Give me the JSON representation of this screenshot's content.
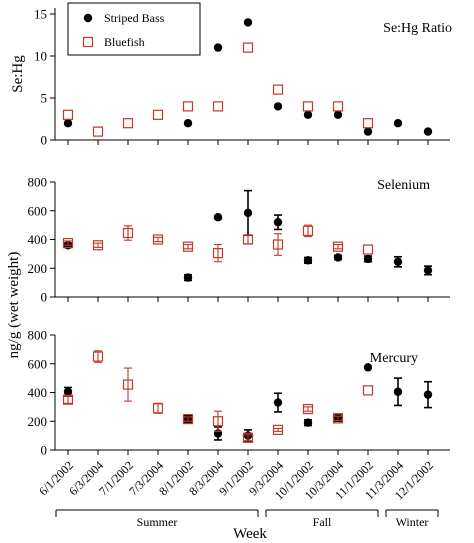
{
  "chart_data": {
    "type": "scatter",
    "ylabel_shared": "ng/g (wet weight)",
    "xlabel": "Week",
    "categories": [
      "6/1/2002",
      "6/3/2004",
      "7/1/2002",
      "7/3/2004",
      "8/1/2002",
      "8/3/2004",
      "9/1/2002",
      "9/3/2004",
      "10/1/2002",
      "10/3/2004",
      "11/1/2002",
      "11/3/2004",
      "12/1/2002"
    ],
    "seasons": [
      {
        "label": "Summer",
        "from": 0,
        "to": 6
      },
      {
        "label": "Fall",
        "from": 7,
        "to": 10
      },
      {
        "label": "Winter",
        "from": 11,
        "to": 12
      }
    ],
    "legend": [
      {
        "name": "Striped Bass",
        "marker": "filled-circle",
        "color": "#000000"
      },
      {
        "name": "Bluefish",
        "marker": "open-square",
        "color": "#c0392b"
      }
    ],
    "colors": {
      "striped_bass": "#000000",
      "bluefish": "#c0392b"
    },
    "panels": [
      {
        "id": "sehg",
        "title": "Se:Hg Ratio",
        "ylabel": "Se:Hg",
        "ylim": [
          0,
          15
        ],
        "yticks": [
          0,
          5,
          10,
          15
        ],
        "series": [
          {
            "name": "Striped Bass",
            "points": [
              {
                "x": 0,
                "y": 2
              },
              {
                "x": 4,
                "y": 2
              },
              {
                "x": 5,
                "y": 11
              },
              {
                "x": 6,
                "y": 14
              },
              {
                "x": 7,
                "y": 4
              },
              {
                "x": 8,
                "y": 3
              },
              {
                "x": 9,
                "y": 3
              },
              {
                "x": 10,
                "y": 1
              },
              {
                "x": 11,
                "y": 2
              },
              {
                "x": 12,
                "y": 1
              }
            ]
          },
          {
            "name": "Bluefish",
            "points": [
              {
                "x": 0,
                "y": 3
              },
              {
                "x": 1,
                "y": 1
              },
              {
                "x": 2,
                "y": 2
              },
              {
                "x": 3,
                "y": 3
              },
              {
                "x": 4,
                "y": 4
              },
              {
                "x": 5,
                "y": 4
              },
              {
                "x": 6,
                "y": 11
              },
              {
                "x": 7,
                "y": 6
              },
              {
                "x": 8,
                "y": 4
              },
              {
                "x": 9,
                "y": 4
              },
              {
                "x": 10,
                "y": 2
              }
            ]
          }
        ]
      },
      {
        "id": "selenium",
        "title": "Selenium",
        "ylabel": "",
        "ylim": [
          0,
          800
        ],
        "yticks": [
          0,
          200,
          400,
          600,
          800
        ],
        "series": [
          {
            "name": "Striped Bass",
            "points": [
              {
                "x": 0,
                "y": 360,
                "err": 15
              },
              {
                "x": 4,
                "y": 135,
                "err": 20
              },
              {
                "x": 5,
                "y": 555,
                "err": 10
              },
              {
                "x": 6,
                "y": 585,
                "err": 155
              },
              {
                "x": 7,
                "y": 520,
                "err": 50
              },
              {
                "x": 8,
                "y": 255,
                "err": 20
              },
              {
                "x": 9,
                "y": 275,
                "err": 15
              },
              {
                "x": 10,
                "y": 265,
                "err": 20
              },
              {
                "x": 11,
                "y": 245,
                "err": 35
              },
              {
                "x": 12,
                "y": 185,
                "err": 30
              }
            ]
          },
          {
            "name": "Bluefish",
            "points": [
              {
                "x": 0,
                "y": 375,
                "err": 15
              },
              {
                "x": 1,
                "y": 360,
                "err": 15
              },
              {
                "x": 2,
                "y": 445,
                "err": 50
              },
              {
                "x": 3,
                "y": 400,
                "err": 15
              },
              {
                "x": 4,
                "y": 350,
                "err": 15
              },
              {
                "x": 5,
                "y": 305,
                "err": 60
              },
              {
                "x": 6,
                "y": 400,
                "err": 30
              },
              {
                "x": 7,
                "y": 365,
                "err": 75
              },
              {
                "x": 8,
                "y": 460,
                "err": 40
              },
              {
                "x": 9,
                "y": 350,
                "err": 15
              },
              {
                "x": 10,
                "y": 330,
                "err": 0
              }
            ]
          }
        ]
      },
      {
        "id": "mercury",
        "title": "Mercury",
        "ylabel": "",
        "ylim": [
          0,
          800
        ],
        "yticks": [
          0,
          200,
          400,
          600,
          800
        ],
        "series": [
          {
            "name": "Striped Bass",
            "points": [
              {
                "x": 0,
                "y": 405,
                "err": 30
              },
              {
                "x": 4,
                "y": 215,
                "err": 25
              },
              {
                "x": 5,
                "y": 115,
                "err": 45
              },
              {
                "x": 6,
                "y": 100,
                "err": 40
              },
              {
                "x": 7,
                "y": 330,
                "err": 65
              },
              {
                "x": 8,
                "y": 190,
                "err": 20
              },
              {
                "x": 9,
                "y": 225,
                "err": 25
              },
              {
                "x": 10,
                "y": 575,
                "err": 0
              },
              {
                "x": 11,
                "y": 405,
                "err": 95
              },
              {
                "x": 12,
                "y": 385,
                "err": 90
              }
            ]
          },
          {
            "name": "Bluefish",
            "points": [
              {
                "x": 0,
                "y": 350,
                "err": 25
              },
              {
                "x": 1,
                "y": 650,
                "err": 40
              },
              {
                "x": 2,
                "y": 455,
                "err": 115
              },
              {
                "x": 3,
                "y": 290,
                "err": 35
              },
              {
                "x": 4,
                "y": 215,
                "err": 15
              },
              {
                "x": 5,
                "y": 200,
                "err": 70
              },
              {
                "x": 6,
                "y": 85,
                "err": 20
              },
              {
                "x": 7,
                "y": 140,
                "err": 10
              },
              {
                "x": 8,
                "y": 285,
                "err": 15
              },
              {
                "x": 9,
                "y": 220,
                "err": 15
              },
              {
                "x": 10,
                "y": 415,
                "err": 0
              }
            ]
          }
        ]
      }
    ]
  }
}
